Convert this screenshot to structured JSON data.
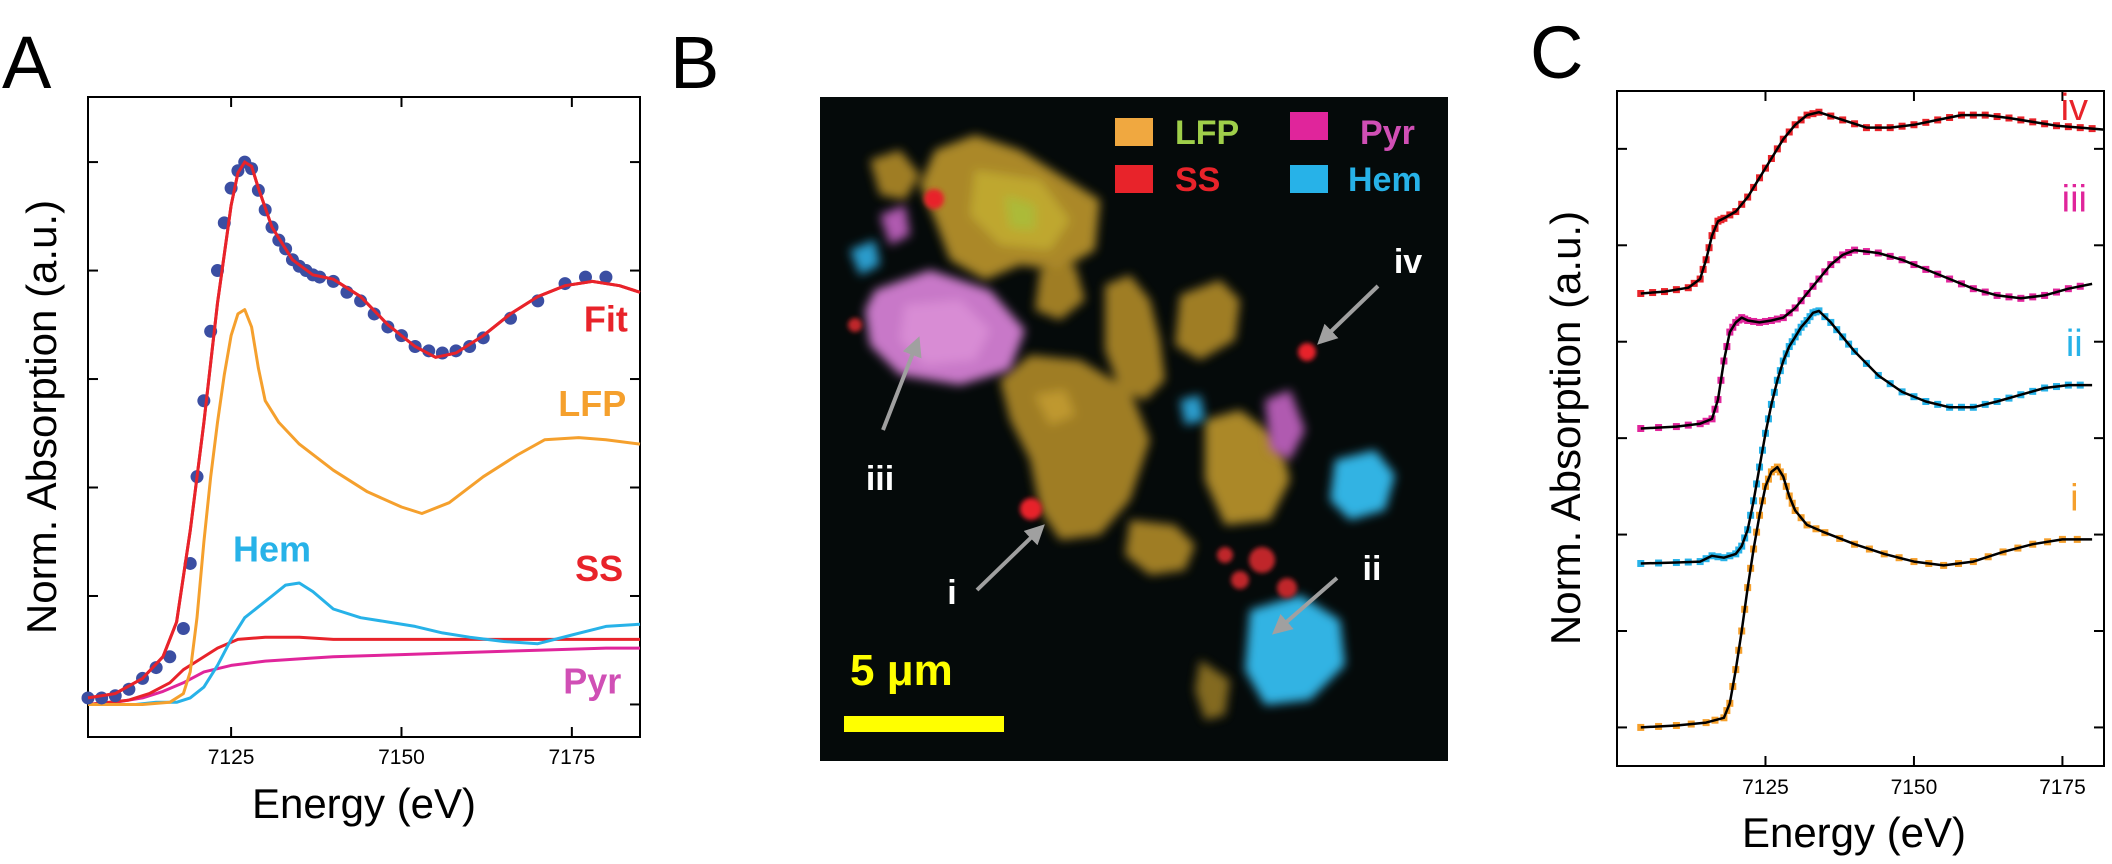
{
  "colors": {
    "fit": "#e8232a",
    "lfp": "#f5a02d",
    "ss": "#e8232a",
    "hem": "#27b2e8",
    "pyr": "#e0259b",
    "data_dots": "#3b4ea2",
    "map_lfp_text": "#9fcf4a",
    "map_ss_text": "#e8232a",
    "map_pyr_text": "#d04fb5",
    "map_hem_text": "#27b2e8",
    "scale_bar": "#ffff00",
    "arrow": "#a0a0a0",
    "map_background": "#050a0a"
  },
  "panels": {
    "a": {
      "letter": "A"
    },
    "b": {
      "letter": "B"
    },
    "c": {
      "letter": "C"
    }
  },
  "chart_data": [
    {
      "type": "line",
      "panel": "A",
      "xlabel": "Energy (eV)",
      "ylabel": "Norm. Absorption (a.u.)",
      "xlim": [
        7104,
        7185
      ],
      "xticks": [
        7125,
        7150,
        7175
      ],
      "ylim": [
        -0.15,
        2.8
      ],
      "y_ticks_unlabeled": [
        0,
        0.5,
        1,
        1.5,
        2,
        2.5
      ],
      "series": [
        {
          "name": "Fit",
          "x": [
            7104,
            7108,
            7112,
            7115,
            7117,
            7119,
            7121,
            7123,
            7125,
            7126,
            7127,
            7128,
            7129,
            7131,
            7134,
            7137,
            7140,
            7144,
            7148,
            7152,
            7155,
            7158,
            7162,
            7166,
            7170,
            7174,
            7178,
            7182,
            7185
          ],
          "y": [
            0.03,
            0.05,
            0.12,
            0.22,
            0.38,
            0.8,
            1.3,
            1.85,
            2.3,
            2.45,
            2.5,
            2.48,
            2.38,
            2.2,
            2.05,
            1.98,
            1.96,
            1.88,
            1.75,
            1.65,
            1.6,
            1.62,
            1.7,
            1.8,
            1.88,
            1.93,
            1.95,
            1.93,
            1.9
          ]
        },
        {
          "name": "data",
          "x": [
            7104,
            7106,
            7108,
            7110,
            7112,
            7114,
            7116,
            7118,
            7119,
            7120,
            7121,
            7122,
            7123,
            7124,
            7125,
            7126,
            7127,
            7128,
            7129,
            7130,
            7131,
            7132,
            7133,
            7134,
            7135,
            7136,
            7137,
            7138,
            7140,
            7142,
            7144,
            7146,
            7148,
            7150,
            7152,
            7154,
            7156,
            7158,
            7160,
            7162,
            7166,
            7170,
            7174,
            7177,
            7180
          ],
          "y": [
            0.03,
            0.03,
            0.04,
            0.07,
            0.12,
            0.17,
            0.22,
            0.35,
            0.65,
            1.05,
            1.4,
            1.72,
            2.0,
            2.22,
            2.38,
            2.46,
            2.5,
            2.47,
            2.37,
            2.28,
            2.2,
            2.14,
            2.1,
            2.05,
            2.02,
            2.0,
            1.98,
            1.97,
            1.95,
            1.9,
            1.86,
            1.8,
            1.74,
            1.7,
            1.65,
            1.63,
            1.62,
            1.63,
            1.65,
            1.69,
            1.78,
            1.86,
            1.94,
            1.97,
            1.97
          ]
        },
        {
          "name": "LFP",
          "x": [
            7104,
            7112,
            7116,
            7118,
            7119,
            7120,
            7121,
            7122,
            7123,
            7124,
            7125,
            7126,
            7127,
            7128,
            7129,
            7130,
            7132,
            7135,
            7140,
            7145,
            7150,
            7153,
            7157,
            7162,
            7167,
            7171,
            7176,
            7180,
            7185
          ],
          "y": [
            0.0,
            0.0,
            0.01,
            0.05,
            0.15,
            0.4,
            0.75,
            1.05,
            1.3,
            1.52,
            1.7,
            1.8,
            1.82,
            1.74,
            1.55,
            1.4,
            1.3,
            1.2,
            1.08,
            0.98,
            0.91,
            0.88,
            0.93,
            1.05,
            1.15,
            1.22,
            1.23,
            1.22,
            1.2
          ]
        },
        {
          "name": "SS",
          "x": [
            7104,
            7110,
            7113,
            7116,
            7118,
            7120,
            7123,
            7126,
            7130,
            7135,
            7140,
            7150,
            7160,
            7170,
            7180,
            7185
          ],
          "y": [
            0.0,
            0.02,
            0.05,
            0.1,
            0.16,
            0.2,
            0.26,
            0.3,
            0.31,
            0.31,
            0.3,
            0.3,
            0.3,
            0.3,
            0.3,
            0.3
          ]
        },
        {
          "name": "Hem",
          "x": [
            7104,
            7108,
            7111,
            7114,
            7117,
            7119,
            7121,
            7123,
            7125,
            7127,
            7129,
            7131,
            7133,
            7135,
            7137,
            7140,
            7144,
            7148,
            7152,
            7156,
            7160,
            7165,
            7170,
            7175,
            7180,
            7185
          ],
          "y": [
            0.0,
            0.0,
            0.0,
            0.01,
            0.01,
            0.03,
            0.08,
            0.18,
            0.3,
            0.4,
            0.45,
            0.5,
            0.55,
            0.56,
            0.52,
            0.44,
            0.4,
            0.38,
            0.36,
            0.33,
            0.31,
            0.29,
            0.28,
            0.32,
            0.36,
            0.37
          ]
        },
        {
          "name": "Pyr",
          "x": [
            7104,
            7108,
            7112,
            7115,
            7118,
            7121,
            7125,
            7130,
            7135,
            7140,
            7150,
            7160,
            7170,
            7180,
            7185
          ],
          "y": [
            0.0,
            0.01,
            0.03,
            0.06,
            0.1,
            0.15,
            0.18,
            0.2,
            0.21,
            0.22,
            0.23,
            0.24,
            0.25,
            0.26,
            0.26
          ]
        }
      ],
      "labels": [
        {
          "text": "Fit",
          "series": "Fit"
        },
        {
          "text": "LFP",
          "series": "LFP"
        },
        {
          "text": "Hem",
          "series": "Hem"
        },
        {
          "text": "SS",
          "series": "SS"
        },
        {
          "text": "Pyr",
          "series": "Pyr"
        }
      ]
    },
    {
      "type": "line",
      "panel": "C",
      "xlabel": "Energy (eV)",
      "ylabel": "Norm. Absorption (a.u.)",
      "xlim": [
        7100,
        7182
      ],
      "xticks": [
        7125,
        7150,
        7175
      ],
      "ylim": [
        -0.4,
        6.6
      ],
      "y_ticks_unlabeled": [
        0,
        1,
        2,
        3,
        4,
        5,
        6
      ],
      "series": [
        {
          "name": "i",
          "offset": 0,
          "x": [
            7104,
            7110,
            7115,
            7118,
            7119,
            7120,
            7121,
            7122,
            7123,
            7124,
            7125,
            7126,
            7127,
            7128,
            7129,
            7130,
            7132,
            7135,
            7140,
            7145,
            7150,
            7155,
            7160,
            7165,
            7170,
            7175,
            7180
          ],
          "y": [
            0.0,
            0.02,
            0.05,
            0.1,
            0.25,
            0.6,
            1.0,
            1.45,
            1.85,
            2.2,
            2.5,
            2.65,
            2.7,
            2.6,
            2.4,
            2.25,
            2.1,
            2.02,
            1.9,
            1.8,
            1.72,
            1.68,
            1.72,
            1.82,
            1.9,
            1.95,
            1.95
          ]
        },
        {
          "name": "ii",
          "offset": 1.7,
          "x": [
            7104,
            7110,
            7114,
            7116,
            7118,
            7120,
            7121,
            7122,
            7123,
            7124,
            7125,
            7126,
            7127,
            7128,
            7129,
            7130,
            7131,
            7132,
            7133,
            7134,
            7136,
            7138,
            7140,
            7144,
            7148,
            7152,
            7156,
            7160,
            7164,
            7168,
            7172,
            7176,
            7180
          ],
          "y": [
            0.0,
            0.01,
            0.02,
            0.08,
            0.06,
            0.1,
            0.18,
            0.35,
            0.65,
            1.0,
            1.35,
            1.65,
            1.9,
            2.1,
            2.25,
            2.35,
            2.45,
            2.52,
            2.6,
            2.62,
            2.5,
            2.35,
            2.2,
            1.95,
            1.78,
            1.68,
            1.62,
            1.62,
            1.68,
            1.75,
            1.82,
            1.85,
            1.85
          ]
        },
        {
          "name": "iii",
          "offset": 3.1,
          "x": [
            7104,
            7110,
            7114,
            7116,
            7117,
            7118,
            7119,
            7120,
            7121,
            7122,
            7124,
            7126,
            7128,
            7130,
            7132,
            7134,
            7136,
            7138,
            7140,
            7144,
            7148,
            7152,
            7156,
            7160,
            7164,
            7168,
            7172,
            7176,
            7180
          ],
          "y": [
            0.0,
            0.02,
            0.05,
            0.1,
            0.3,
            0.7,
            1.0,
            1.1,
            1.15,
            1.12,
            1.1,
            1.12,
            1.15,
            1.25,
            1.4,
            1.55,
            1.7,
            1.8,
            1.85,
            1.82,
            1.75,
            1.65,
            1.55,
            1.45,
            1.38,
            1.35,
            1.38,
            1.45,
            1.5
          ]
        },
        {
          "name": "iv",
          "offset": 4.5,
          "x": [
            7104,
            7108,
            7112,
            7114,
            7115,
            7116,
            7117,
            7118,
            7120,
            7122,
            7124,
            7126,
            7128,
            7130,
            7132,
            7134,
            7138,
            7142,
            7146,
            7150,
            7154,
            7158,
            7162,
            7166,
            7170,
            7174,
            7178,
            7182
          ],
          "y": [
            0.0,
            0.02,
            0.06,
            0.15,
            0.35,
            0.6,
            0.75,
            0.78,
            0.85,
            1.0,
            1.2,
            1.4,
            1.6,
            1.75,
            1.85,
            1.88,
            1.8,
            1.72,
            1.72,
            1.75,
            1.8,
            1.85,
            1.85,
            1.82,
            1.78,
            1.74,
            1.72,
            1.7
          ]
        }
      ],
      "labels": [
        {
          "text": "iv",
          "series": "iv"
        },
        {
          "text": "iii",
          "series": "iii"
        },
        {
          "text": "ii",
          "series": "ii"
        },
        {
          "text": "i",
          "series": "i"
        }
      ]
    }
  ],
  "map": {
    "legend": [
      {
        "text": "LFP",
        "swatch": "#f0a840",
        "text_color": "#9fcf4a"
      },
      {
        "text": "SS",
        "swatch": "#e8232a",
        "text_color": "#e8232a"
      },
      {
        "text": "Pyr",
        "swatch": "#e0259b",
        "text_color": "#d04fb5"
      },
      {
        "text": "Hem",
        "swatch": "#27b2e8",
        "text_color": "#27b2e8"
      }
    ],
    "annotations": [
      "iv",
      "iii",
      "i",
      "ii"
    ],
    "scale_bar_label": "5 μm"
  }
}
